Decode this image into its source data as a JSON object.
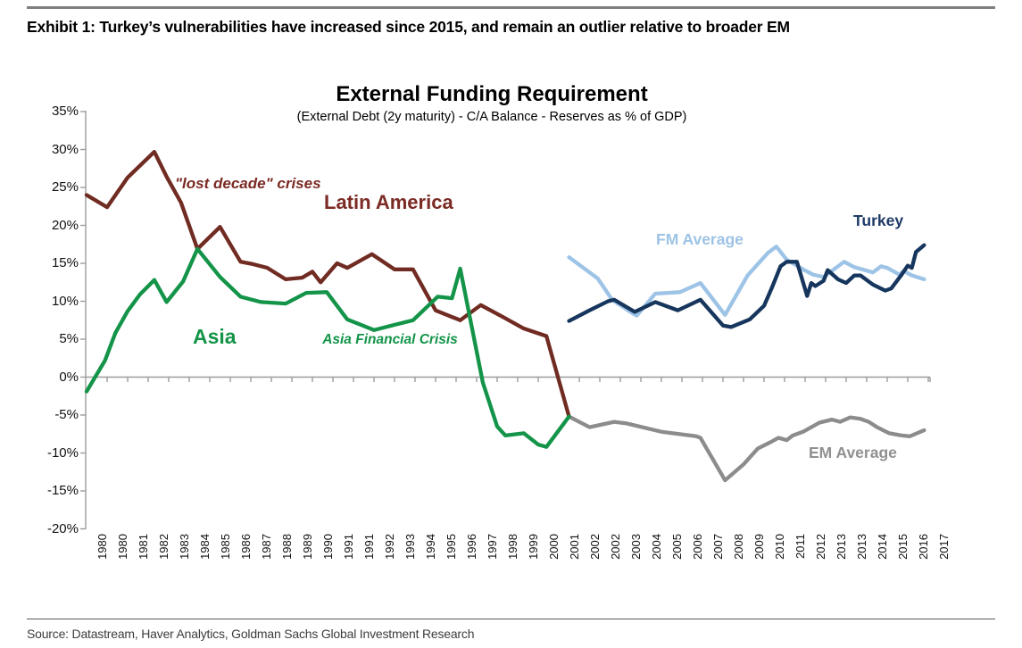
{
  "exhibit": {
    "title": "Exhibit 1: Turkey’s vulnerabilities have increased since 2015, and remain an outlier relative to broader EM"
  },
  "source": {
    "text": "Source: Datastream, Haver Analytics, Goldman Sachs Global Investment Research"
  },
  "chart_data": {
    "type": "line",
    "title": "External Funding Requirement",
    "subtitle": "(External Debt (2y maturity) - C/A Balance - Reserves as % of GDP)",
    "ylim": [
      -20,
      35
    ],
    "y_ticks": [
      35,
      30,
      25,
      20,
      15,
      10,
      5,
      0,
      -5,
      -10,
      -15,
      -20
    ],
    "y_tick_suffix": "%",
    "grid": false,
    "legend_position": "inline-labels",
    "x_labels": [
      "1980",
      "1980",
      "1981",
      "1982",
      "1983",
      "1984",
      "1985",
      "1986",
      "1987",
      "1988",
      "1989",
      "1990",
      "1991",
      "1991",
      "1992",
      "1993",
      "1994",
      "1995",
      "1996",
      "1997",
      "1998",
      "1999",
      "2000",
      "2001",
      "2002",
      "2002",
      "2003",
      "2004",
      "2005",
      "2006",
      "2007",
      "2008",
      "2009",
      "2010",
      "2011",
      "2012",
      "2013",
      "2013",
      "2014",
      "2015",
      "2016",
      "2017"
    ],
    "x_unit": "label-slot-index",
    "annotations": {
      "lost_decade": {
        "text": "\"lost decade\" crises",
        "color": "#7B2A24"
      },
      "latin_america": {
        "text": "Latin America",
        "color": "#7B2A24"
      },
      "asia": {
        "text": "Asia",
        "color": "#139449"
      },
      "asia_crisis": {
        "text": "Asia Financial Crisis",
        "color": "#139449"
      },
      "fm_average": {
        "text": "FM Average",
        "color": "#9DC3E6"
      },
      "turkey": {
        "text": "Turkey",
        "color": "#1E3A66"
      },
      "em_average": {
        "text": "EM Average",
        "color": "#909090"
      }
    },
    "series": [
      {
        "name": "EM Average",
        "color": "#8C8C8C",
        "points": [
          [
            23.5,
            -5.2
          ],
          [
            24.5,
            -6.6
          ],
          [
            25.7,
            -5.9
          ],
          [
            26.3,
            -6.1
          ],
          [
            28.0,
            -7.2
          ],
          [
            29.7,
            -7.8
          ],
          [
            29.9,
            -8.0
          ],
          [
            31.1,
            -13.6
          ],
          [
            32.0,
            -11.5
          ],
          [
            32.7,
            -9.4
          ],
          [
            33.3,
            -8.6
          ],
          [
            33.7,
            -8.0
          ],
          [
            34.1,
            -8.3
          ],
          [
            34.4,
            -7.7
          ],
          [
            34.9,
            -7.2
          ],
          [
            35.7,
            -6.0
          ],
          [
            36.3,
            -5.6
          ],
          [
            36.7,
            -5.9
          ],
          [
            37.2,
            -5.3
          ],
          [
            37.7,
            -5.5
          ],
          [
            38.1,
            -5.9
          ],
          [
            38.5,
            -6.6
          ],
          [
            39.1,
            -7.4
          ],
          [
            39.7,
            -7.7
          ],
          [
            40.1,
            -7.8
          ],
          [
            40.8,
            -7.0
          ]
        ]
      },
      {
        "name": "FM Average",
        "color": "#9DC3E6",
        "points": [
          [
            23.5,
            15.8
          ],
          [
            24.9,
            13.0
          ],
          [
            25.6,
            10.2
          ],
          [
            26.6,
            8.4
          ],
          [
            26.8,
            8.1
          ],
          [
            27.7,
            11.0
          ],
          [
            28.9,
            11.2
          ],
          [
            29.9,
            12.4
          ],
          [
            31.1,
            8.2
          ],
          [
            32.2,
            13.4
          ],
          [
            33.2,
            16.4
          ],
          [
            33.6,
            17.2
          ],
          [
            34.1,
            15.5
          ],
          [
            34.9,
            14.2
          ],
          [
            35.4,
            13.5
          ],
          [
            35.9,
            13.2
          ],
          [
            36.9,
            15.2
          ],
          [
            37.4,
            14.5
          ],
          [
            38.3,
            13.8
          ],
          [
            38.7,
            14.6
          ],
          [
            39.0,
            14.4
          ],
          [
            39.6,
            13.5
          ],
          [
            39.8,
            14.0
          ],
          [
            40.2,
            13.4
          ],
          [
            40.8,
            12.9
          ]
        ]
      },
      {
        "name": "Latin America",
        "color": "#702B22",
        "points": [
          [
            0,
            24.0
          ],
          [
            1.0,
            22.4
          ],
          [
            2.0,
            26.3
          ],
          [
            3.3,
            29.7
          ],
          [
            3.9,
            26.4
          ],
          [
            4.6,
            23.0
          ],
          [
            5.4,
            16.9
          ],
          [
            6.5,
            19.8
          ],
          [
            7.5,
            15.2
          ],
          [
            8.1,
            14.9
          ],
          [
            8.8,
            14.4
          ],
          [
            9.7,
            12.9
          ],
          [
            10.5,
            13.1
          ],
          [
            11.0,
            13.9
          ],
          [
            11.4,
            12.5
          ],
          [
            12.2,
            15.0
          ],
          [
            12.7,
            14.4
          ],
          [
            13.9,
            16.2
          ],
          [
            15.0,
            14.2
          ],
          [
            15.9,
            14.2
          ],
          [
            17.0,
            8.8
          ],
          [
            18.2,
            7.5
          ],
          [
            19.2,
            9.5
          ],
          [
            20.3,
            7.9
          ],
          [
            21.3,
            6.4
          ],
          [
            22.4,
            5.4
          ],
          [
            23.5,
            -5.2
          ]
        ]
      },
      {
        "name": "Asia",
        "color": "#139449",
        "points": [
          [
            0,
            -1.9
          ],
          [
            0.9,
            2.2
          ],
          [
            1.4,
            5.8
          ],
          [
            2.0,
            8.7
          ],
          [
            2.6,
            10.9
          ],
          [
            3.3,
            12.8
          ],
          [
            3.9,
            9.9
          ],
          [
            4.7,
            12.6
          ],
          [
            5.4,
            16.9
          ],
          [
            6.5,
            13.2
          ],
          [
            7.5,
            10.6
          ],
          [
            8.5,
            9.9
          ],
          [
            9.7,
            9.7
          ],
          [
            10.7,
            11.1
          ],
          [
            11.7,
            11.2
          ],
          [
            12.7,
            7.6
          ],
          [
            14.0,
            6.2
          ],
          [
            15.0,
            6.9
          ],
          [
            15.9,
            7.5
          ],
          [
            17.1,
            10.6
          ],
          [
            17.8,
            10.4
          ],
          [
            18.2,
            14.3
          ],
          [
            19.3,
            -0.7
          ],
          [
            20.0,
            -6.5
          ],
          [
            20.4,
            -7.7
          ],
          [
            21.3,
            -7.4
          ],
          [
            22.0,
            -8.9
          ],
          [
            22.4,
            -9.2
          ],
          [
            23.5,
            -5.2
          ]
        ]
      },
      {
        "name": "Turkey",
        "color": "#17365D",
        "points": [
          [
            23.5,
            7.4
          ],
          [
            24.5,
            8.8
          ],
          [
            25.4,
            10.0
          ],
          [
            25.7,
            10.2
          ],
          [
            26.7,
            8.6
          ],
          [
            27.7,
            9.9
          ],
          [
            28.8,
            8.8
          ],
          [
            29.9,
            10.2
          ],
          [
            31.0,
            6.8
          ],
          [
            31.4,
            6.6
          ],
          [
            32.3,
            7.6
          ],
          [
            33.0,
            9.4
          ],
          [
            33.4,
            11.9
          ],
          [
            33.8,
            14.6
          ],
          [
            34.1,
            15.2
          ],
          [
            34.6,
            15.2
          ],
          [
            35.1,
            10.7
          ],
          [
            35.3,
            12.4
          ],
          [
            35.5,
            12.0
          ],
          [
            35.9,
            12.7
          ],
          [
            36.1,
            14.1
          ],
          [
            36.6,
            12.9
          ],
          [
            37.0,
            12.4
          ],
          [
            37.4,
            13.4
          ],
          [
            37.7,
            13.4
          ],
          [
            38.3,
            12.2
          ],
          [
            38.9,
            11.4
          ],
          [
            39.2,
            11.7
          ],
          [
            39.7,
            13.5
          ],
          [
            40.0,
            14.7
          ],
          [
            40.2,
            14.4
          ],
          [
            40.4,
            16.5
          ],
          [
            40.8,
            17.4
          ]
        ]
      }
    ]
  }
}
